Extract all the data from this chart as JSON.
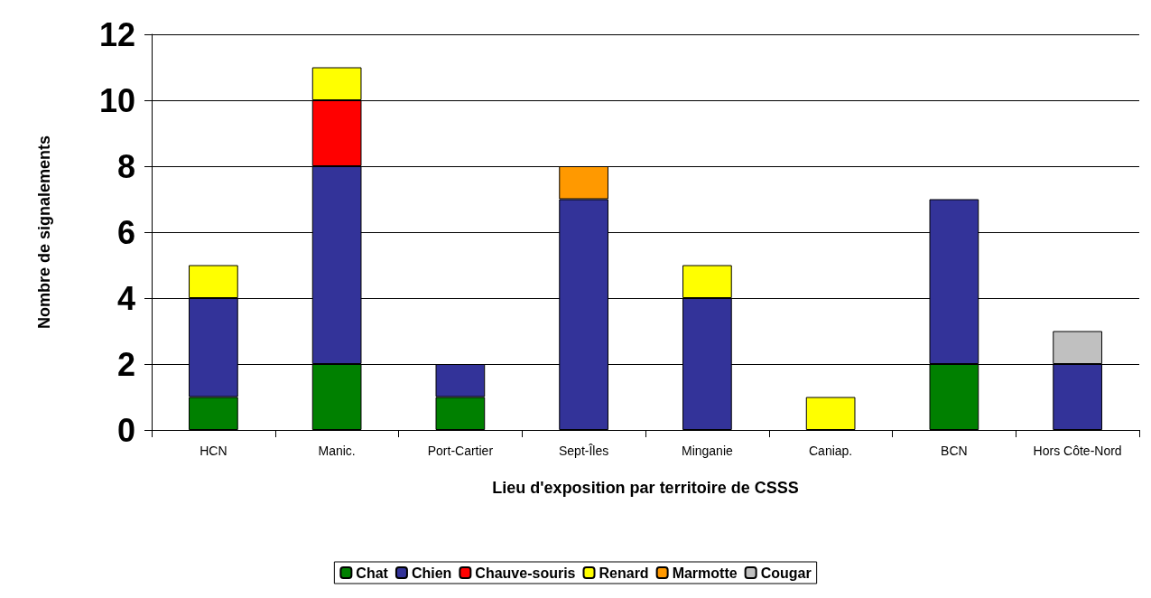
{
  "chart_data": {
    "type": "bar",
    "stacked": true,
    "xlabel": "Lieu d'exposition par territoire de CSSS",
    "ylabel": "Nombre de signalements",
    "categories": [
      "HCN",
      "Manic.",
      "Port-Cartier",
      "Sept-Îles",
      "Minganie",
      "Caniap.",
      "BCN",
      "Hors Côte-Nord"
    ],
    "series": [
      {
        "name": "Chat",
        "color": "#008000",
        "values": [
          1,
          2,
          1,
          null,
          null,
          null,
          2,
          null
        ]
      },
      {
        "name": "Chien",
        "color": "#333399",
        "values": [
          3,
          6,
          1,
          7,
          4,
          null,
          5,
          2
        ]
      },
      {
        "name": "Chauve-souris",
        "color": "#ff0000",
        "values": [
          null,
          2,
          null,
          null,
          null,
          null,
          null,
          null
        ]
      },
      {
        "name": "Renard",
        "color": "#ffff00",
        "values": [
          1,
          1,
          null,
          null,
          1,
          1,
          null,
          null
        ]
      },
      {
        "name": "Marmotte",
        "color": "#ff9900",
        "values": [
          null,
          null,
          null,
          1,
          null,
          null,
          null,
          null
        ]
      },
      {
        "name": "Cougar",
        "color": "#c0c0c0",
        "values": [
          null,
          null,
          null,
          null,
          null,
          null,
          null,
          1
        ]
      }
    ],
    "ylim": [
      0,
      12
    ],
    "yticks": [
      0,
      2,
      4,
      6,
      8,
      10,
      12
    ],
    "grid": "y",
    "legend": "bottom"
  }
}
